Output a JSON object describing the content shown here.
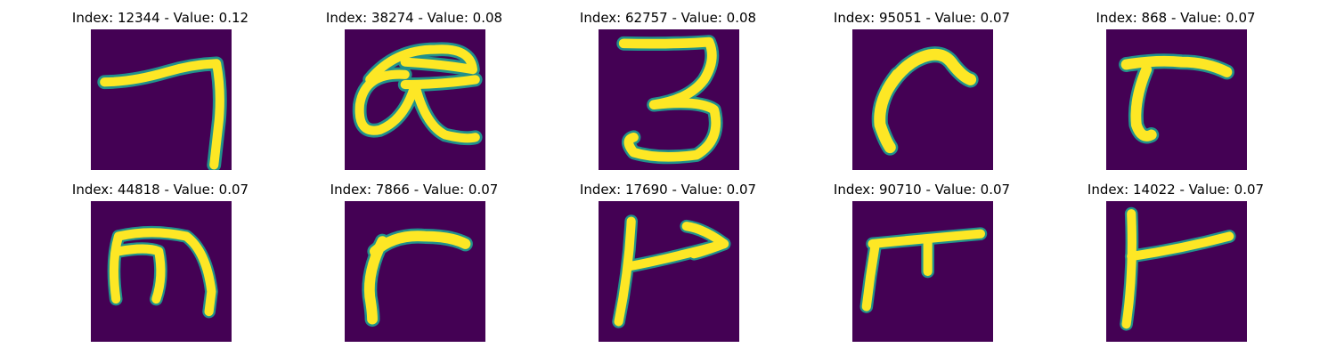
{
  "figure": {
    "background_color": "#440154",
    "stroke_color": "#fde725",
    "edge_color": "#21918c",
    "panels": [
      {
        "title": "Index: 12344 - Value: 0.12",
        "glyph": "seven-like stroke"
      },
      {
        "title": "Index: 38274 - Value: 0.08",
        "glyph": "alpha-like loops"
      },
      {
        "title": "Index: 62757 - Value: 0.08",
        "glyph": "three-like curves"
      },
      {
        "title": "Index: 95051 - Value: 0.07",
        "glyph": "hook curve"
      },
      {
        "title": "Index: 868 - Value: 0.07",
        "glyph": "r-like hook"
      },
      {
        "title": "Index: 44818 - Value: 0.07",
        "glyph": "m-like arches"
      },
      {
        "title": "Index: 7866 - Value: 0.07",
        "glyph": "r-like corner"
      },
      {
        "title": "Index: 17690 - Value: 0.07",
        "glyph": "vertical with arrow"
      },
      {
        "title": "Index: 90710 - Value: 0.07",
        "glyph": "pi-like shape"
      },
      {
        "title": "Index: 14022 - Value: 0.07",
        "glyph": "vertical with flag"
      }
    ]
  }
}
